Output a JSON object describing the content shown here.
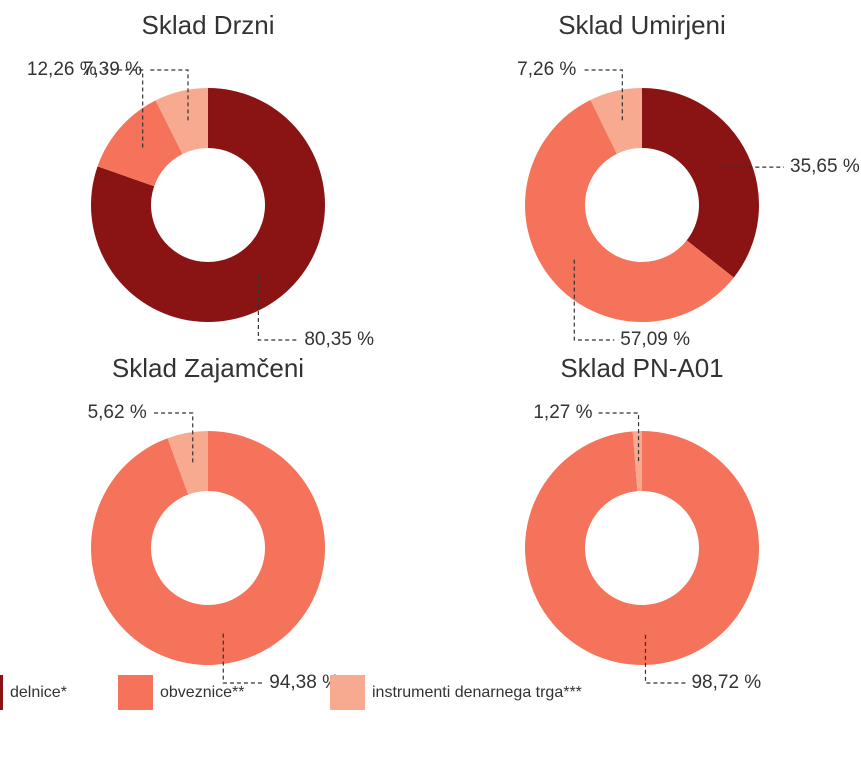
{
  "chart_data": [
    {
      "type": "pie",
      "title": "Sklad Drzni",
      "values": [
        80.35,
        12.26,
        7.39
      ],
      "value_labels": [
        "80,35 %",
        "12,26 %",
        "7,39 %"
      ]
    },
    {
      "type": "pie",
      "title": "Sklad Umirjeni",
      "values": [
        35.65,
        57.09,
        7.26
      ],
      "value_labels": [
        "35,65 %",
        "57,09 %",
        "7,26 %"
      ]
    },
    {
      "type": "pie",
      "title": "Sklad Zajamčeni",
      "values": [
        null,
        94.38,
        5.62
      ],
      "value_labels": [
        null,
        "94,38 %",
        "5,62 %"
      ]
    },
    {
      "type": "pie",
      "title": "Sklad PN-A01",
      "values": [
        null,
        98.72,
        1.27
      ],
      "value_labels": [
        null,
        "98,72 %",
        "1,27 %"
      ]
    }
  ],
  "legend": {
    "labels": [
      "delnice*",
      "obveznice**",
      "instrumenti denarnega trga***"
    ],
    "colors": [
      "#8a1414",
      "#f4735a",
      "#f8aa90"
    ]
  }
}
